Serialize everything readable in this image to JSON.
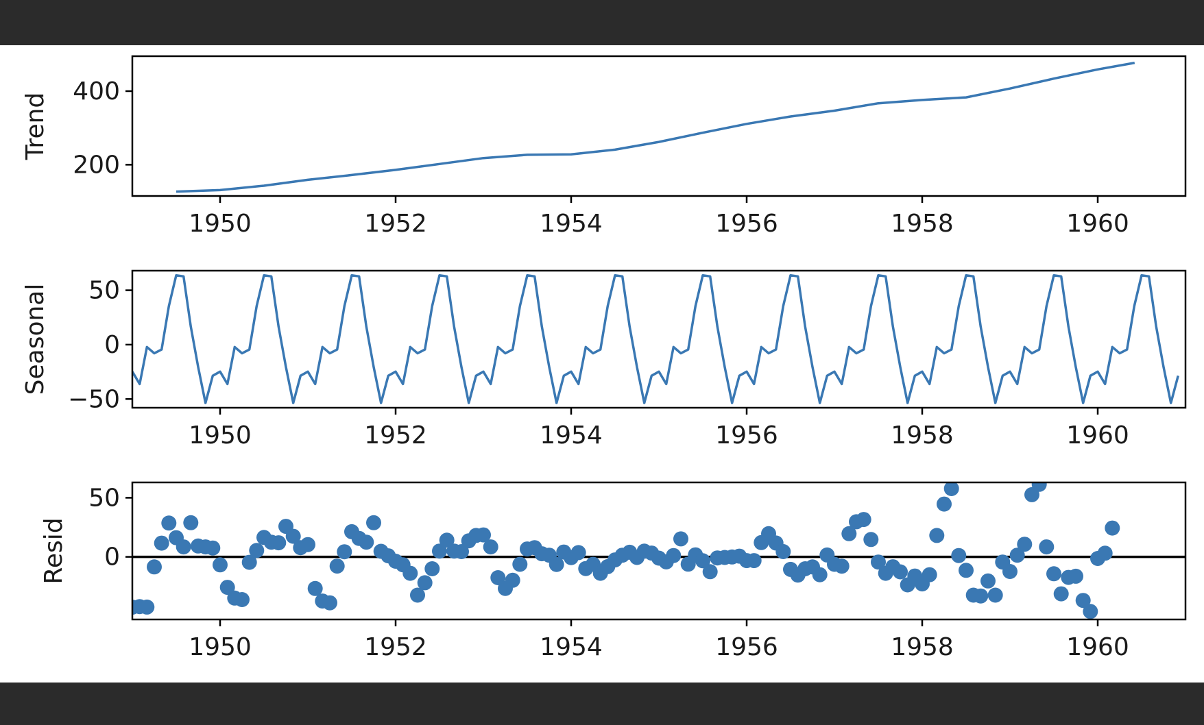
{
  "colors": {
    "series": "#3a78b3",
    "axis": "#000000",
    "window_bar": "#2b2b2b",
    "canvas": "#ffffff"
  },
  "chart_data": [
    {
      "type": "line",
      "ylabel": "Trend",
      "xlim": [
        1949.0,
        1961.0
      ],
      "ylim": [
        115,
        495
      ],
      "xticks": [
        1950,
        1952,
        1954,
        1956,
        1958,
        1960
      ],
      "yticks": [
        200,
        400
      ],
      "grid": false,
      "series": [
        {
          "x": [
            1949.5,
            1950.0,
            1950.5,
            1951.0,
            1951.5,
            1952.0,
            1952.5,
            1953.0,
            1953.5,
            1954.0,
            1954.5,
            1955.0,
            1955.5,
            1956.0,
            1956.5,
            1957.0,
            1957.5,
            1958.0,
            1958.5,
            1959.0,
            1959.5,
            1960.0,
            1960.42
          ],
          "y": [
            127,
            131,
            143,
            159,
            172,
            186,
            202,
            218,
            227,
            228,
            241,
            262,
            287,
            311,
            331,
            347,
            367,
            376,
            383,
            407,
            434,
            459,
            477
          ]
        }
      ]
    },
    {
      "type": "line",
      "ylabel": "Seasonal",
      "xlim": [
        1949.0,
        1961.0
      ],
      "ylim": [
        -58,
        68
      ],
      "xticks": [
        1950,
        1952,
        1954,
        1956,
        1958,
        1960
      ],
      "yticks": [
        -50,
        0,
        50
      ],
      "grid": false,
      "period_start": 1949.0,
      "periods": 12,
      "series": [
        {
          "monthly_pattern": [
            -24.8,
            -36.2,
            -2.2,
            -8.0,
            -4.5,
            35.4,
            63.8,
            62.8,
            16.5,
            -20.6,
            -53.6,
            -28.6
          ]
        }
      ]
    },
    {
      "type": "scatter",
      "ylabel": "Resid",
      "xlim": [
        1949.0,
        1961.0
      ],
      "ylim": [
        -53,
        63
      ],
      "xticks": [
        1950,
        1952,
        1954,
        1956,
        1958,
        1960
      ],
      "yticks": [
        0,
        50
      ],
      "hline": 0,
      "grid": false,
      "series": [
        {
          "y": [
            -42.6,
            -42.1,
            -42.5,
            -8.5,
            11.6,
            28.6,
            16.2,
            8.4,
            28.9,
            9.2,
            8.4,
            7.5,
            -6.8,
            -25.8,
            -34.9,
            -36.2,
            -4.6,
            5.4,
            16.4,
            12.4,
            11.9,
            25.8,
            17.4,
            7.8,
            10.4,
            -26.8,
            -37.4,
            -38.9,
            -7.8,
            4.3,
            21.3,
            15.6,
            12.4,
            28.9,
            4.7,
            0.9,
            -3.7,
            -6.7,
            -13.9,
            -32.4,
            -21.9,
            -10.1,
            4.9,
            14.1,
            4.9,
            4.4,
            13.6,
            18.1,
            18.6,
            8.4,
            -17.6,
            -26.7,
            -19.8,
            -6.3,
            6.7,
            7.8,
            2.6,
            1.4,
            -6.4,
            4.1,
            -0.6,
            3.6,
            -9.9,
            -6.3,
            -13.9,
            -8.3,
            -2.6,
            1.4,
            3.9,
            -0.5,
            4.8,
            3.2,
            -1.1,
            -4.3,
            1.1,
            15.2,
            -6.2,
            1.7,
            -3.3,
            -12.6,
            -0.9,
            -0.5,
            -0.1,
            0.6,
            -3.2,
            -3.2,
            12.1,
            19.6,
            11.7,
            4.4,
            -10.6,
            -15.4,
            -10.1,
            -8.5,
            -15.1,
            1.6,
            -6.3,
            -7.9,
            19.6,
            29.7,
            31.6,
            14.7,
            -4.4,
            -13.9,
            -8.4,
            -12.7,
            -23.7,
            -16.2,
            -22.9,
            -15.1,
            18.1,
            44.7,
            57.8,
            1.1,
            -11.4,
            -32.4,
            -33.1,
            -20.4,
            -32.4,
            -4.4,
            -12.4,
            1.4,
            10.7,
            52.6,
            61.4,
            8.4,
            -14.3,
            -31.3,
            -17.4,
            -16.4,
            -36.9,
            -46.2,
            -1.4,
            3.1,
            24.4
          ]
        }
      ]
    }
  ]
}
